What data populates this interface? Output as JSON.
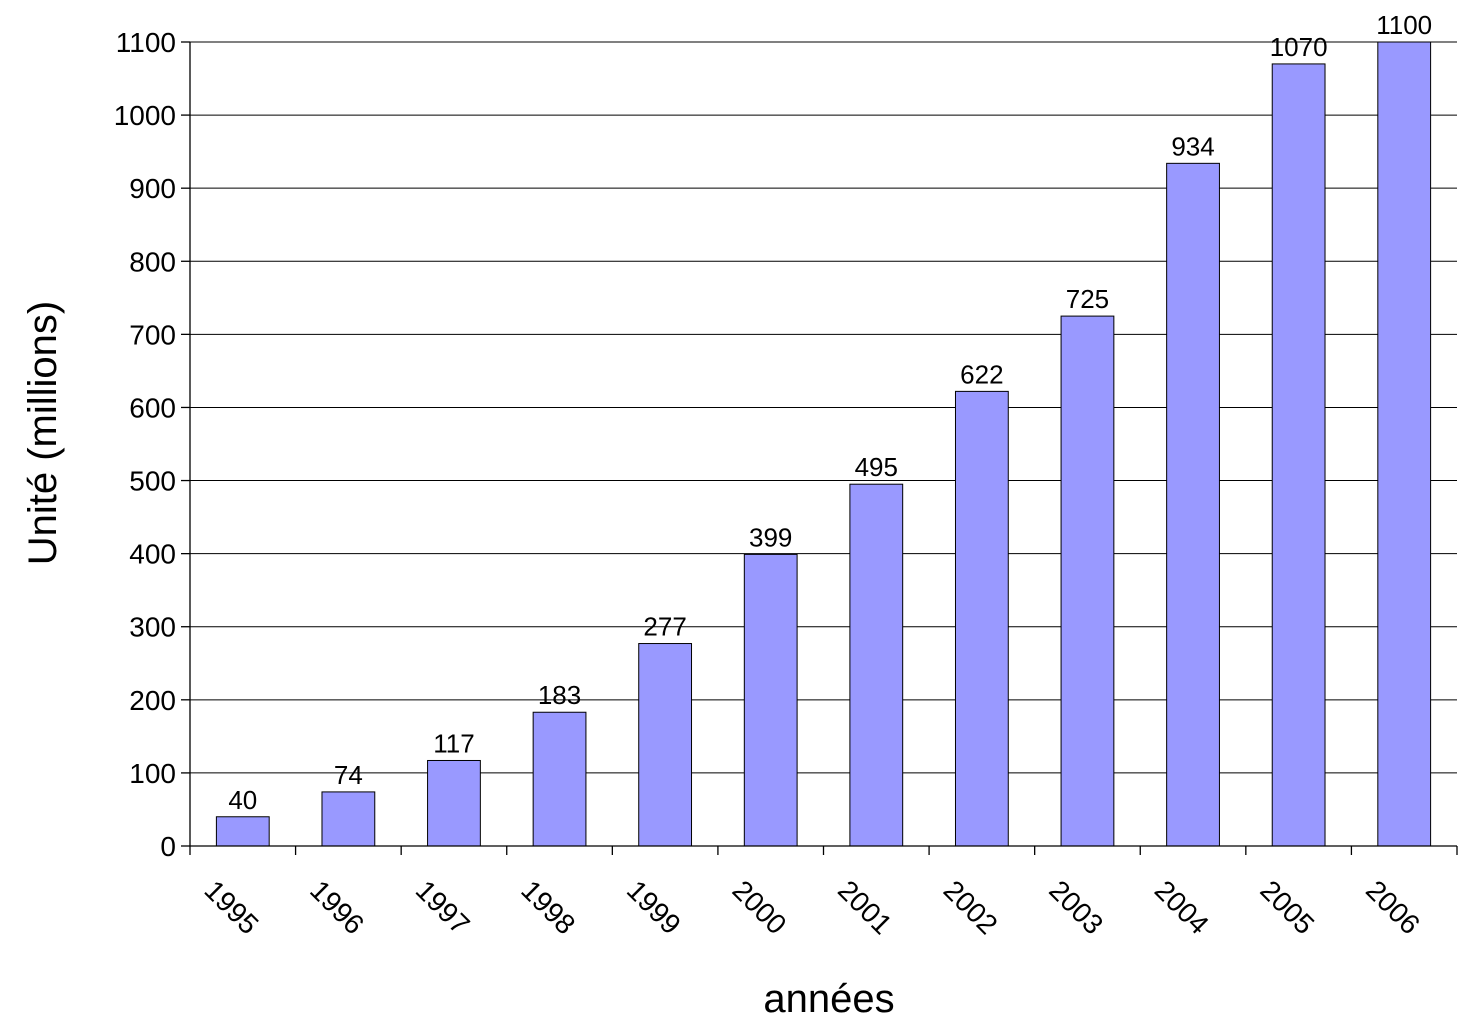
{
  "chart_data": {
    "type": "bar",
    "title": "",
    "xlabel": "années",
    "ylabel": "Unité (millions)",
    "categories": [
      "1995",
      "1996",
      "1997",
      "1998",
      "1999",
      "2000",
      "2001",
      "2002",
      "2003",
      "2004",
      "2005",
      "2006"
    ],
    "values": [
      40,
      74,
      117,
      183,
      277,
      399,
      495,
      622,
      725,
      934,
      1070,
      1100
    ],
    "data_labels": [
      "40",
      "74",
      "117",
      "183",
      "277",
      "399",
      "495",
      "622",
      "725",
      "934",
      "1070",
      "1100"
    ],
    "ylim": [
      0,
      1100
    ],
    "yticks": [
      0,
      100,
      200,
      300,
      400,
      500,
      600,
      700,
      800,
      900,
      1000,
      1100
    ],
    "ytick_labels": [
      "0",
      "100",
      "200",
      "300",
      "400",
      "500",
      "600",
      "700",
      "800",
      "900",
      "1000",
      "1100"
    ],
    "grid": true,
    "legend": "none",
    "bar_color": "#9999ff",
    "x_tick_rotation": "45deg clockwise"
  }
}
